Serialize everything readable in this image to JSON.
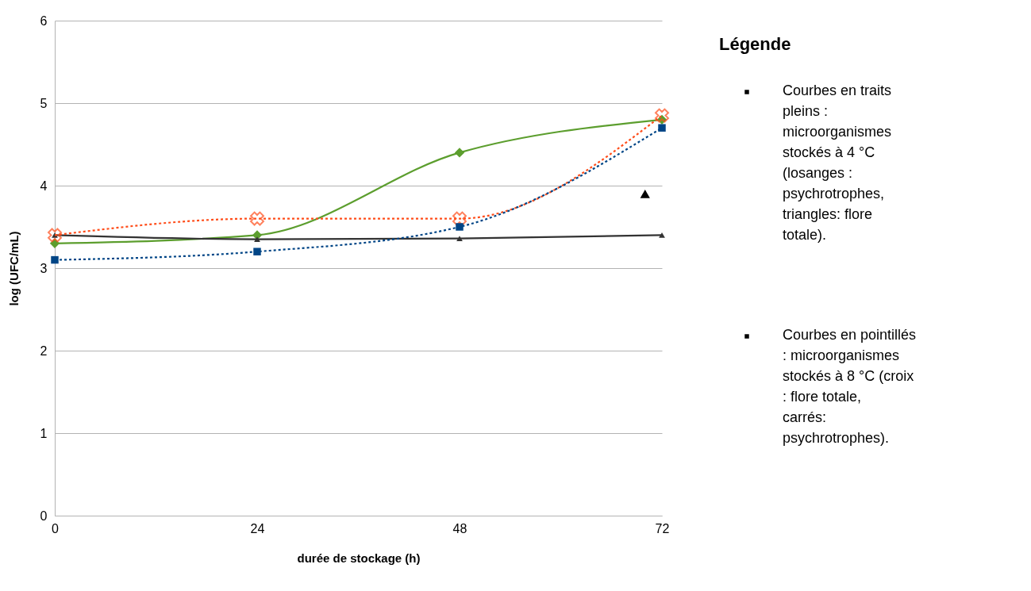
{
  "chart_data": {
    "type": "line",
    "xlabel": "durée de stockage (h)",
    "ylabel": "log (UFC/mL)",
    "x": [
      0,
      24,
      48,
      72
    ],
    "series": [
      {
        "color": "#5c9e2e",
        "values": [
          3.3,
          3.4,
          4.4,
          4.8
        ],
        "marker": "diamond",
        "line_style": "solid"
      },
      {
        "color": "#333333",
        "values": [
          3.4,
          3.35,
          3.36,
          3.4
        ],
        "marker": "triangle",
        "line_style": "solid"
      },
      {
        "color": "#ff4d1a",
        "values": [
          3.4,
          3.6,
          3.6,
          4.85
        ],
        "marker": "cross",
        "line_style": "dotted"
      },
      {
        "color": "#004586",
        "values": [
          3.1,
          3.2,
          3.5,
          4.7
        ],
        "marker": "square",
        "line_style": "dotted"
      },
      {
        "type": "scatter",
        "color": "#000000",
        "x": [
          70
        ],
        "values": [
          3.9
        ],
        "marker": "triangle"
      }
    ],
    "xlim": [
      0,
      72
    ],
    "xticks": [
      0,
      24,
      48,
      72
    ],
    "ylim": [
      0,
      6
    ],
    "yticks": [
      0,
      1,
      2,
      3,
      4,
      5,
      6
    ],
    "grid": "y",
    "annotations": [
      "Légende",
      "Courbes en traits pleins : microorganismes stockés à 4 °C (losanges : psychrotrophes, triangles: flore totale).",
      "Courbes en pointillés : microorganismes stockés à 8 °C (croix : flore totale, carrés: psychrotrophes)."
    ]
  }
}
